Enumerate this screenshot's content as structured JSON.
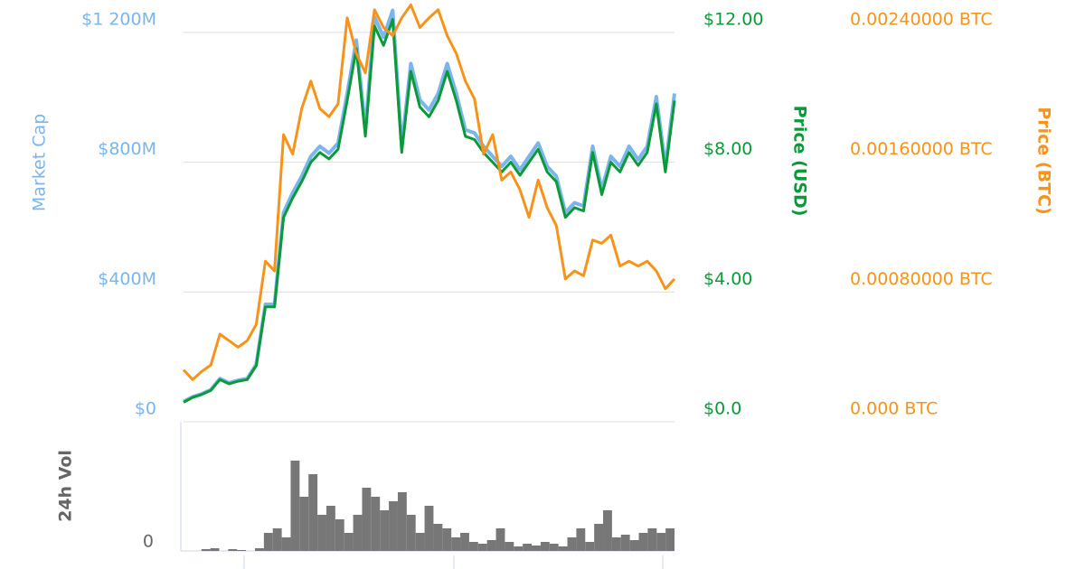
{
  "chart_data": [
    {
      "type": "line",
      "ylim": [
        0,
        1300000000
      ],
      "yticks": [
        {
          "value": 0,
          "label": "$0"
        },
        {
          "value": 400000000,
          "label": "$400M"
        },
        {
          "value": 800000000,
          "label": "$800M"
        },
        {
          "value": 1200000000,
          "label": "$1 200M"
        }
      ],
      "y2lim": [
        0,
        13
      ],
      "y2ticks": [
        {
          "value": 0,
          "label": "$0.0"
        },
        {
          "value": 4,
          "label": "$4.00"
        },
        {
          "value": 8,
          "label": "$8.00"
        },
        {
          "value": 12,
          "label": "$12.00"
        }
      ],
      "y3lim": [
        0,
        0.0026
      ],
      "y3ticks": [
        {
          "value": 0,
          "label": "0.000 BTC"
        },
        {
          "value": 0.0008,
          "label": "0.00080000 BTC"
        },
        {
          "value": 0.0016,
          "label": "0.00160000 BTC"
        },
        {
          "value": 0.0024,
          "label": "0.00240000 BTC"
        }
      ],
      "grid": true,
      "series": [
        {
          "name": "Market Cap",
          "color": "#7cb5ec",
          "axis": "y",
          "values": [
            62000000,
            77000000,
            86000000,
            99000000,
            133000000,
            120000000,
            128000000,
            133000000,
            177000000,
            362000000,
            362000000,
            645000000,
            706000000,
            757000000,
            818000000,
            849000000,
            828000000,
            859000000,
            1012000000,
            1176000000,
            900000000,
            1248000000,
            1186000000,
            1268000000,
            849000000,
            1104000000,
            992000000,
            961000000,
            1012000000,
            1104000000,
            1012000000,
            900000000,
            890000000,
            849000000,
            818000000,
            787000000,
            818000000,
            777000000,
            818000000,
            859000000,
            787000000,
            757000000,
            645000000,
            675000000,
            665000000,
            849000000,
            716000000,
            818000000,
            787000000,
            849000000,
            808000000,
            849000000,
            1002000000,
            787000000,
            1012000000
          ]
        },
        {
          "name": "Price (USD)",
          "color": "#0b9a3a",
          "axis": "y2",
          "values": [
            0.6,
            0.75,
            0.84,
            0.97,
            1.3,
            1.17,
            1.25,
            1.3,
            1.73,
            3.54,
            3.54,
            6.3,
            6.9,
            7.4,
            8.0,
            8.3,
            8.1,
            8.4,
            9.9,
            11.5,
            8.8,
            12.2,
            11.6,
            12.4,
            8.3,
            10.8,
            9.7,
            9.4,
            9.9,
            10.8,
            9.9,
            8.8,
            8.7,
            8.3,
            8.0,
            7.7,
            8.0,
            7.6,
            8.0,
            8.4,
            7.7,
            7.4,
            6.3,
            6.6,
            6.5,
            8.3,
            7.0,
            8.0,
            7.7,
            8.3,
            7.9,
            8.3,
            9.8,
            7.7,
            9.9
          ]
        },
        {
          "name": "Price (BTC)",
          "color": "#f7931a",
          "axis": "y3",
          "values": [
            0.00032,
            0.00026,
            0.00031,
            0.00035,
            0.00054,
            0.0005,
            0.00046,
            0.0005,
            0.0006,
            0.00099,
            0.00093,
            0.00177,
            0.00165,
            0.00193,
            0.0021,
            0.00193,
            0.00188,
            0.00196,
            0.00249,
            0.00227,
            0.00215,
            0.00254,
            0.00243,
            0.00238,
            0.00249,
            0.00257,
            0.00243,
            0.00249,
            0.00254,
            0.00238,
            0.00227,
            0.0021,
            0.00199,
            0.00165,
            0.00177,
            0.00149,
            0.00154,
            0.00143,
            0.00126,
            0.00149,
            0.00132,
            0.00121,
            0.00088,
            0.00093,
            0.0009,
            0.00112,
            0.0011,
            0.00115,
            0.00096,
            0.00099,
            0.00096,
            0.00099,
            0.00093,
            0.00082,
            0.00088
          ]
        }
      ]
    },
    {
      "type": "bar",
      "y_label": "24h Vol",
      "color": "#777777",
      "ylim": [
        0,
        120
      ],
      "yticks": [
        0
      ],
      "values": [
        0,
        0,
        2,
        3,
        0,
        2,
        1,
        0,
        3,
        20,
        25,
        15,
        100,
        60,
        85,
        40,
        50,
        35,
        20,
        40,
        70,
        60,
        45,
        55,
        65,
        40,
        20,
        50,
        30,
        25,
        15,
        20,
        10,
        8,
        12,
        25,
        10,
        5,
        8,
        6,
        10,
        8,
        5,
        15,
        25,
        10,
        30,
        45,
        15,
        18,
        12,
        20,
        25,
        20,
        25
      ]
    }
  ]
}
